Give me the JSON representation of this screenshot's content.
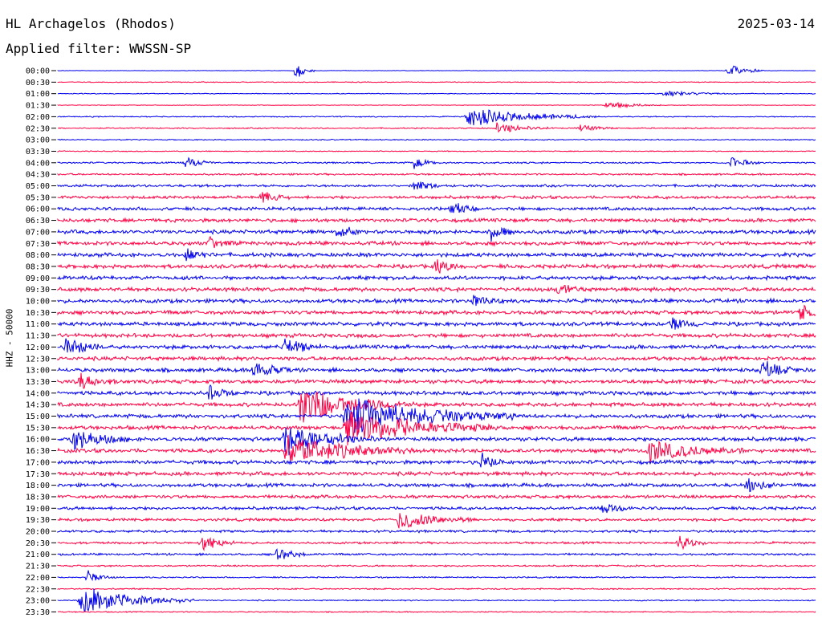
{
  "header": {
    "station": "HL Archagelos (Rhodos)",
    "date": "2025-03-14",
    "filter": "Applied filter: WWSSN-SP",
    "channel": "HHZ - 50000"
  },
  "colors": {
    "trace_a": "#0000ee",
    "trace_b": "#ff0044",
    "background": "#ffffff"
  },
  "chart_data": {
    "type": "line",
    "title": "HL Archagelos (Rhodos)",
    "subtitle": "Applied filter: WWSSN-SP",
    "ylabel": "HHZ - 50000",
    "xlabel": "",
    "row_interval_minutes": 30,
    "row_labels": [
      "00:00",
      "00:30",
      "01:00",
      "01:30",
      "02:00",
      "02:30",
      "03:00",
      "03:30",
      "04:00",
      "04:30",
      "05:00",
      "05:30",
      "06:00",
      "06:30",
      "07:00",
      "07:30",
      "08:00",
      "08:30",
      "09:00",
      "09:30",
      "10:00",
      "10:30",
      "11:00",
      "11:30",
      "12:00",
      "12:30",
      "13:00",
      "13:30",
      "14:00",
      "14:30",
      "15:00",
      "15:30",
      "16:00",
      "16:30",
      "17:00",
      "17:30",
      "18:00",
      "18:30",
      "19:00",
      "19:30",
      "20:00",
      "20:30",
      "21:00",
      "21:30",
      "22:00",
      "22:30",
      "23:00",
      "23:30"
    ],
    "noise_level": [
      0.3,
      0.6,
      0.6,
      0.4,
      0.8,
      0.9,
      0.8,
      0.7,
      1.2,
      1.3,
      1.8,
      2.2,
      2.4,
      2.6,
      2.8,
      2.8,
      2.8,
      2.8,
      2.8,
      2.8,
      2.8,
      2.8,
      2.8,
      2.8,
      2.8,
      2.8,
      2.8,
      2.8,
      2.8,
      2.8,
      2.8,
      2.8,
      2.8,
      2.8,
      2.8,
      2.8,
      2.6,
      2.4,
      2.2,
      2.0,
      1.8,
      1.6,
      1.5,
      1.2,
      1.0,
      1.0,
      0.9,
      0.8
    ],
    "events": [
      {
        "row": 0,
        "x": 0.315,
        "amplitude": 14,
        "duration": 0.01
      },
      {
        "row": 0,
        "x": 0.885,
        "amplitude": 10,
        "duration": 0.02
      },
      {
        "row": 2,
        "x": 0.8,
        "amplitude": 4,
        "duration": 0.04
      },
      {
        "row": 3,
        "x": 0.725,
        "amplitude": 6,
        "duration": 0.03
      },
      {
        "row": 4,
        "x": 0.54,
        "amplitude": 14,
        "duration": 0.07
      },
      {
        "row": 5,
        "x": 0.58,
        "amplitude": 8,
        "duration": 0.03
      },
      {
        "row": 5,
        "x": 0.69,
        "amplitude": 5,
        "duration": 0.02
      },
      {
        "row": 8,
        "x": 0.17,
        "amplitude": 9,
        "duration": 0.015
      },
      {
        "row": 8,
        "x": 0.47,
        "amplitude": 8,
        "duration": 0.015
      },
      {
        "row": 8,
        "x": 0.89,
        "amplitude": 9,
        "duration": 0.015
      },
      {
        "row": 10,
        "x": 0.47,
        "amplitude": 10,
        "duration": 0.015
      },
      {
        "row": 11,
        "x": 0.27,
        "amplitude": 8,
        "duration": 0.015
      },
      {
        "row": 12,
        "x": 0.52,
        "amplitude": 9,
        "duration": 0.015
      },
      {
        "row": 14,
        "x": 0.37,
        "amplitude": 10,
        "duration": 0.015
      },
      {
        "row": 14,
        "x": 0.57,
        "amplitude": 12,
        "duration": 0.015
      },
      {
        "row": 15,
        "x": 0.2,
        "amplitude": 9,
        "duration": 0.015
      },
      {
        "row": 16,
        "x": 0.17,
        "amplitude": 9,
        "duration": 0.015
      },
      {
        "row": 17,
        "x": 0.5,
        "amplitude": 10,
        "duration": 0.015
      },
      {
        "row": 19,
        "x": 0.66,
        "amplitude": 10,
        "duration": 0.015
      },
      {
        "row": 20,
        "x": 0.55,
        "amplitude": 11,
        "duration": 0.015
      },
      {
        "row": 21,
        "x": 0.98,
        "amplitude": 12,
        "duration": 0.015
      },
      {
        "row": 22,
        "x": 0.81,
        "amplitude": 12,
        "duration": 0.015
      },
      {
        "row": 24,
        "x": 0.01,
        "amplitude": 16,
        "duration": 0.02
      },
      {
        "row": 24,
        "x": 0.3,
        "amplitude": 14,
        "duration": 0.02
      },
      {
        "row": 26,
        "x": 0.26,
        "amplitude": 14,
        "duration": 0.02
      },
      {
        "row": 26,
        "x": 0.93,
        "amplitude": 14,
        "duration": 0.02
      },
      {
        "row": 27,
        "x": 0.03,
        "amplitude": 12,
        "duration": 0.02
      },
      {
        "row": 28,
        "x": 0.2,
        "amplitude": 11,
        "duration": 0.015
      },
      {
        "row": 29,
        "x": 0.32,
        "amplitude": 30,
        "duration": 0.06
      },
      {
        "row": 30,
        "x": 0.38,
        "amplitude": 30,
        "duration": 0.09
      },
      {
        "row": 31,
        "x": 0.38,
        "amplitude": 26,
        "duration": 0.08
      },
      {
        "row": 32,
        "x": 0.02,
        "amplitude": 18,
        "duration": 0.03
      },
      {
        "row": 32,
        "x": 0.3,
        "amplitude": 20,
        "duration": 0.05
      },
      {
        "row": 33,
        "x": 0.3,
        "amplitude": 22,
        "duration": 0.07
      },
      {
        "row": 33,
        "x": 0.78,
        "amplitude": 16,
        "duration": 0.05
      },
      {
        "row": 34,
        "x": 0.56,
        "amplitude": 12,
        "duration": 0.015
      },
      {
        "row": 36,
        "x": 0.91,
        "amplitude": 14,
        "duration": 0.015
      },
      {
        "row": 38,
        "x": 0.72,
        "amplitude": 10,
        "duration": 0.015
      },
      {
        "row": 39,
        "x": 0.45,
        "amplitude": 16,
        "duration": 0.04
      },
      {
        "row": 41,
        "x": 0.19,
        "amplitude": 14,
        "duration": 0.02
      },
      {
        "row": 41,
        "x": 0.82,
        "amplitude": 12,
        "duration": 0.015
      },
      {
        "row": 42,
        "x": 0.29,
        "amplitude": 12,
        "duration": 0.015
      },
      {
        "row": 44,
        "x": 0.04,
        "amplitude": 10,
        "duration": 0.015
      },
      {
        "row": 46,
        "x": 0.03,
        "amplitude": 22,
        "duration": 0.06
      }
    ]
  }
}
